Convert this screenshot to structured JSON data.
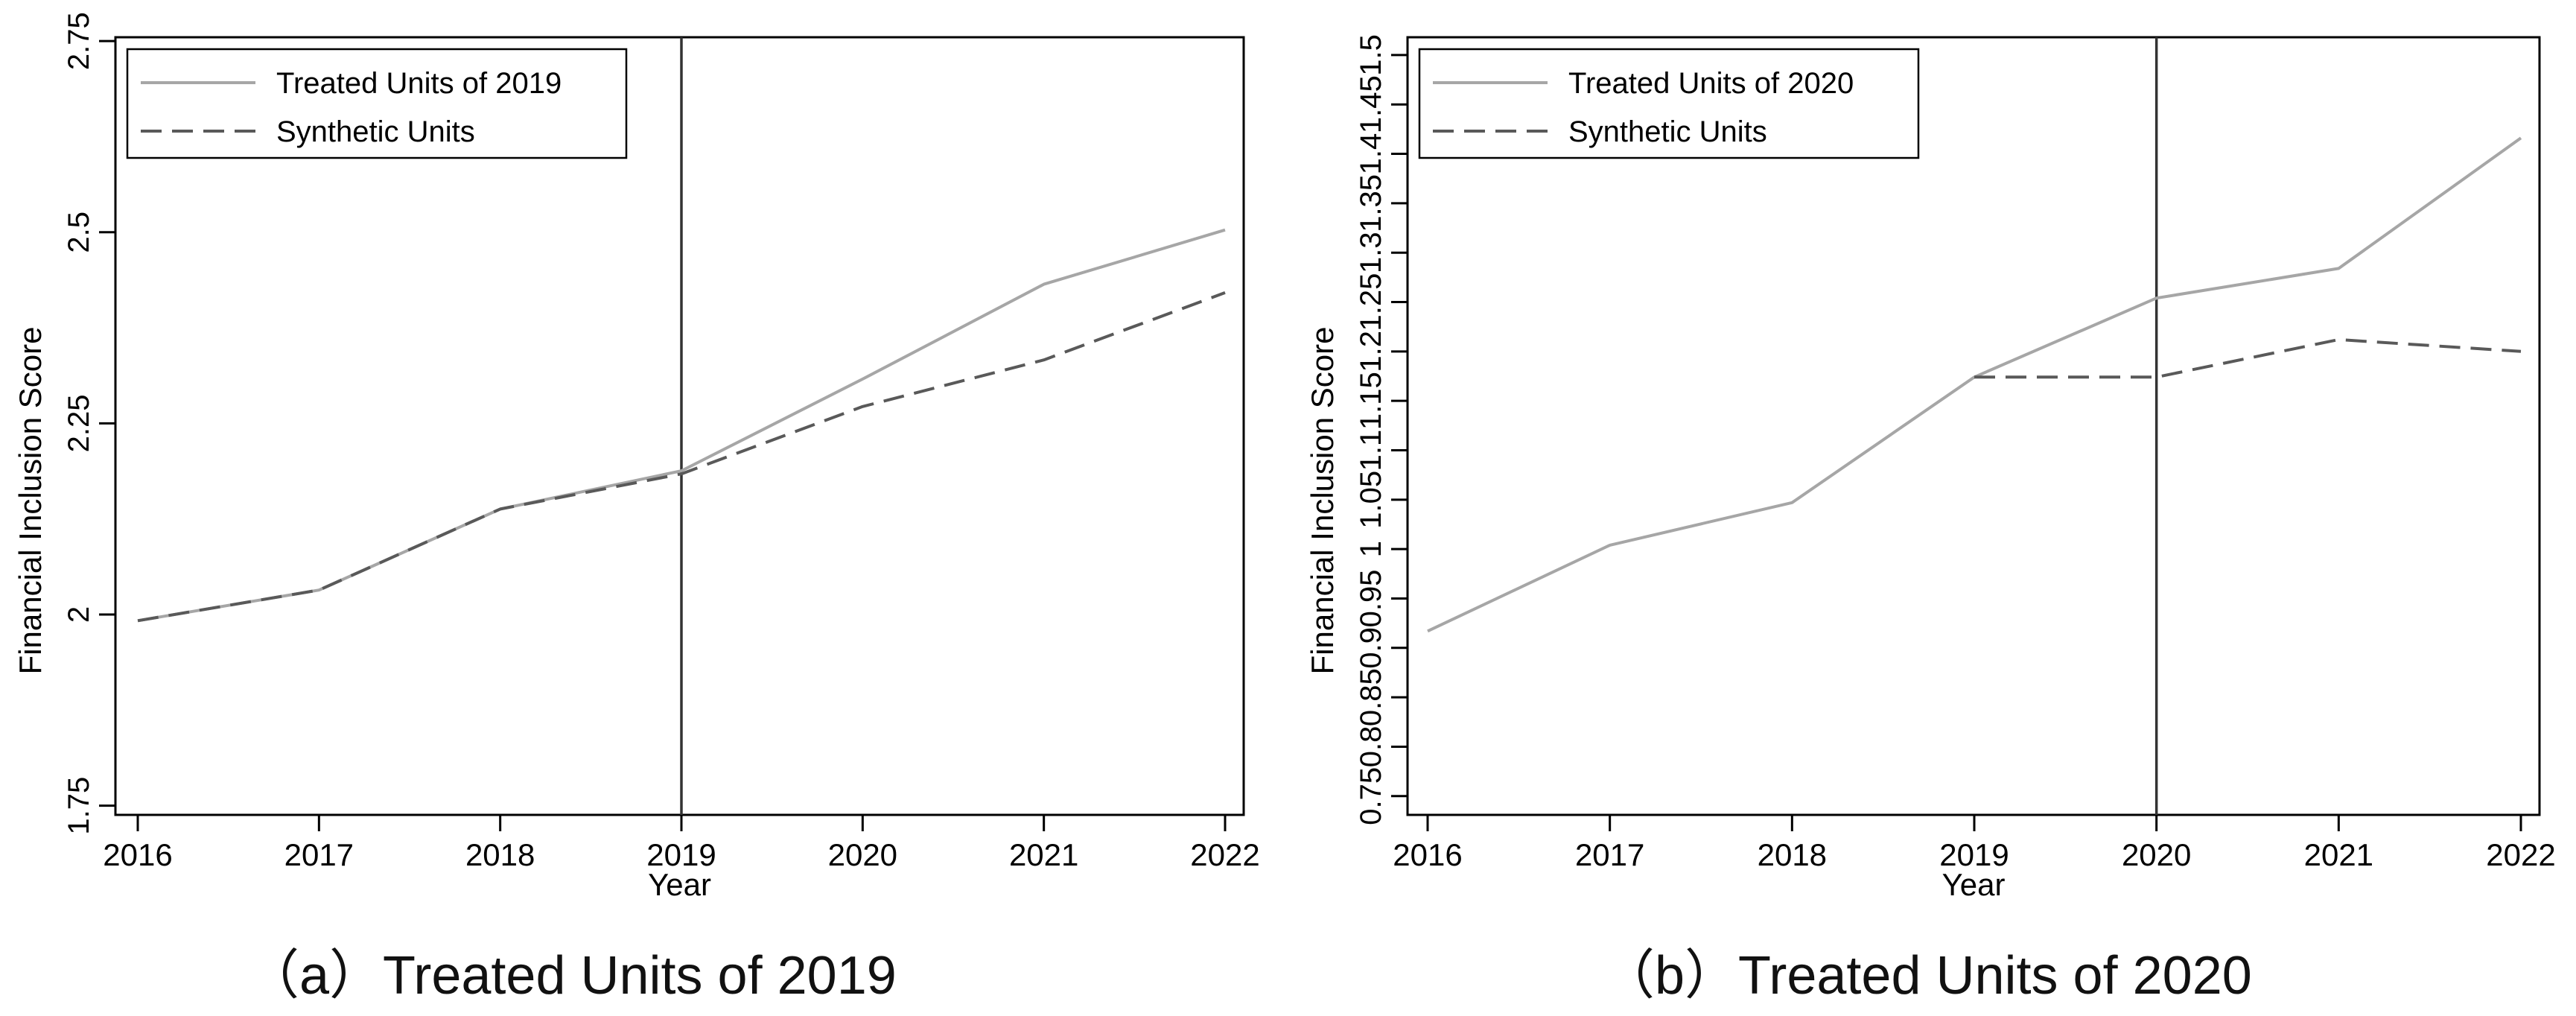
{
  "chart_data": [
    {
      "type": "line",
      "title": "",
      "caption": "（a）Treated Units of 2019",
      "xlabel": "Year",
      "ylabel": "Financial Inclusion Score",
      "x": [
        2016,
        2017,
        2018,
        2019,
        2020,
        2021,
        2022
      ],
      "xlim": [
        2016,
        2022
      ],
      "ylim": [
        1.738,
        2.755
      ],
      "yticks": [
        1.75,
        2,
        2.25,
        2.5,
        2.75
      ],
      "ytick_labels": [
        "1.75",
        "2",
        "2.25",
        "2.5",
        "2.75"
      ],
      "vline": 2019,
      "legend_position": "top-left",
      "series": [
        {
          "name": "Treated Units of 2019",
          "style": "solid",
          "color": "#a6a6a6",
          "values": [
            1.992,
            2.032,
            2.138,
            2.188,
            2.308,
            2.432,
            2.503
          ]
        },
        {
          "name": "Synthetic Units",
          "style": "dashed",
          "color": "#595959",
          "values": [
            1.992,
            2.032,
            2.138,
            2.184,
            2.272,
            2.333,
            2.421
          ]
        }
      ]
    },
    {
      "type": "line",
      "title": "",
      "caption": "（b）Treated Units of 2020",
      "xlabel": "Year",
      "ylabel": "Financial Inclusion Score",
      "x": [
        2016,
        2017,
        2018,
        2019,
        2020,
        2021,
        2022
      ],
      "xlim": [
        2016,
        2022
      ],
      "ylim": [
        0.731,
        1.518
      ],
      "yticks": [
        0.75,
        0.8,
        0.85,
        0.9,
        0.95,
        1,
        1.05,
        1.1,
        1.15,
        1.2,
        1.25,
        1.3,
        1.35,
        1.4,
        1.45,
        1.5
      ],
      "ytick_labels": [
        "0.75",
        "0.8",
        "0.85",
        "0.9",
        "0.95",
        "1",
        "1.05",
        "1.1",
        "1.15",
        "1.2",
        "1.25",
        "1.3",
        "1.35",
        "1.4",
        "1.45",
        "1.5"
      ],
      "vline": 2020,
      "legend_position": "top-left",
      "series": [
        {
          "name": "Treated Units of 2020",
          "style": "solid",
          "color": "#a6a6a6",
          "values": [
            0.917,
            1.004,
            1.047,
            1.174,
            1.254,
            1.284,
            1.416
          ]
        },
        {
          "name": "Synthetic Units",
          "style": "dashed",
          "color": "#595959",
          "values": [
            null,
            null,
            null,
            1.174,
            1.174,
            1.212,
            1.2
          ]
        }
      ]
    }
  ]
}
